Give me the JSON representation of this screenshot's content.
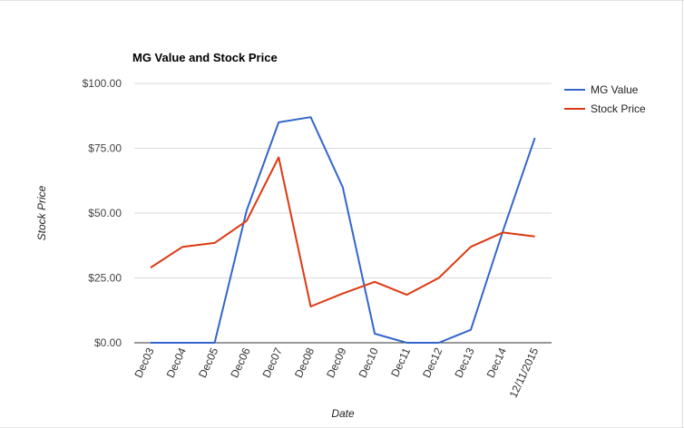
{
  "chart_data": {
    "type": "line",
    "title": "MG Value and Stock Price",
    "xlabel": "Date",
    "ylabel": "Stock Price",
    "categories": [
      "Dec03",
      "Dec04",
      "Dec05",
      "Dec06",
      "Dec07",
      "Dec08",
      "Dec09",
      "Dec10",
      "Dec11",
      "Dec12",
      "Dec13",
      "Dec14",
      "12/11/2015"
    ],
    "series": [
      {
        "name": "MG Value",
        "color": "#3366cc",
        "values": [
          0,
          0,
          0,
          51,
          85,
          87,
          60,
          3.5,
          0,
          0,
          5,
          43,
          79
        ]
      },
      {
        "name": "Stock Price",
        "color": "#dc3912",
        "values": [
          29,
          37,
          38.5,
          47,
          71.5,
          14,
          19,
          23.5,
          18.5,
          25,
          37,
          42.5,
          41
        ]
      }
    ],
    "yticks": [
      "$0.00",
      "$25.00",
      "$50.00",
      "$75.00",
      "$100.00"
    ],
    "ylim": [
      0,
      100
    ],
    "grid": true,
    "legend": "right"
  }
}
